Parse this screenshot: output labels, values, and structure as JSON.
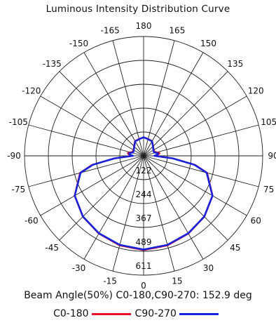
{
  "title": "Luminous Intensity Distribution Curve",
  "beam_angle_text": "Beam Angle(50%) C0-180,C90-270: 152.9 deg",
  "colors": {
    "grid": "#222222",
    "c0_180": "#e8102a",
    "c90_270": "#1a22d8"
  },
  "chart_data": {
    "type": "polar",
    "title": "Luminous Intensity Distribution Curve",
    "angle_labels": [
      "180",
      "165",
      "150",
      "135",
      "120",
      "105",
      "90",
      "75",
      "60",
      "45",
      "30",
      "15",
      "0",
      "-15",
      "-30",
      "-45",
      "-60",
      "-75",
      "-90",
      "-105",
      "-120",
      "-135",
      "-150",
      "-165"
    ],
    "radial_labels": [
      "122",
      "244",
      "367",
      "489",
      "611"
    ],
    "radial_max": 611,
    "radial_rings": 5,
    "grid": true,
    "legend_position": "bottom",
    "series": [
      {
        "name": "C0-180",
        "angles": [
          0,
          15,
          30,
          45,
          60,
          75,
          80,
          85,
          90,
          95,
          100,
          105,
          110,
          120,
          135,
          150,
          165,
          180
        ],
        "values": [
          483,
          475,
          460,
          441,
          409,
          338,
          270,
          152,
          57,
          77,
          83,
          71,
          60,
          60,
          70,
          88,
          90,
          95
        ]
      },
      {
        "name": "C90-270",
        "angles": [
          0,
          15,
          30,
          45,
          60,
          75,
          80,
          85,
          90,
          95,
          100,
          105,
          110,
          120,
          135,
          150,
          165,
          180
        ],
        "values": [
          480,
          472,
          458,
          440,
          408,
          335,
          265,
          150,
          55,
          72,
          76,
          63,
          56,
          58,
          68,
          86,
          88,
          95
        ]
      }
    ]
  }
}
